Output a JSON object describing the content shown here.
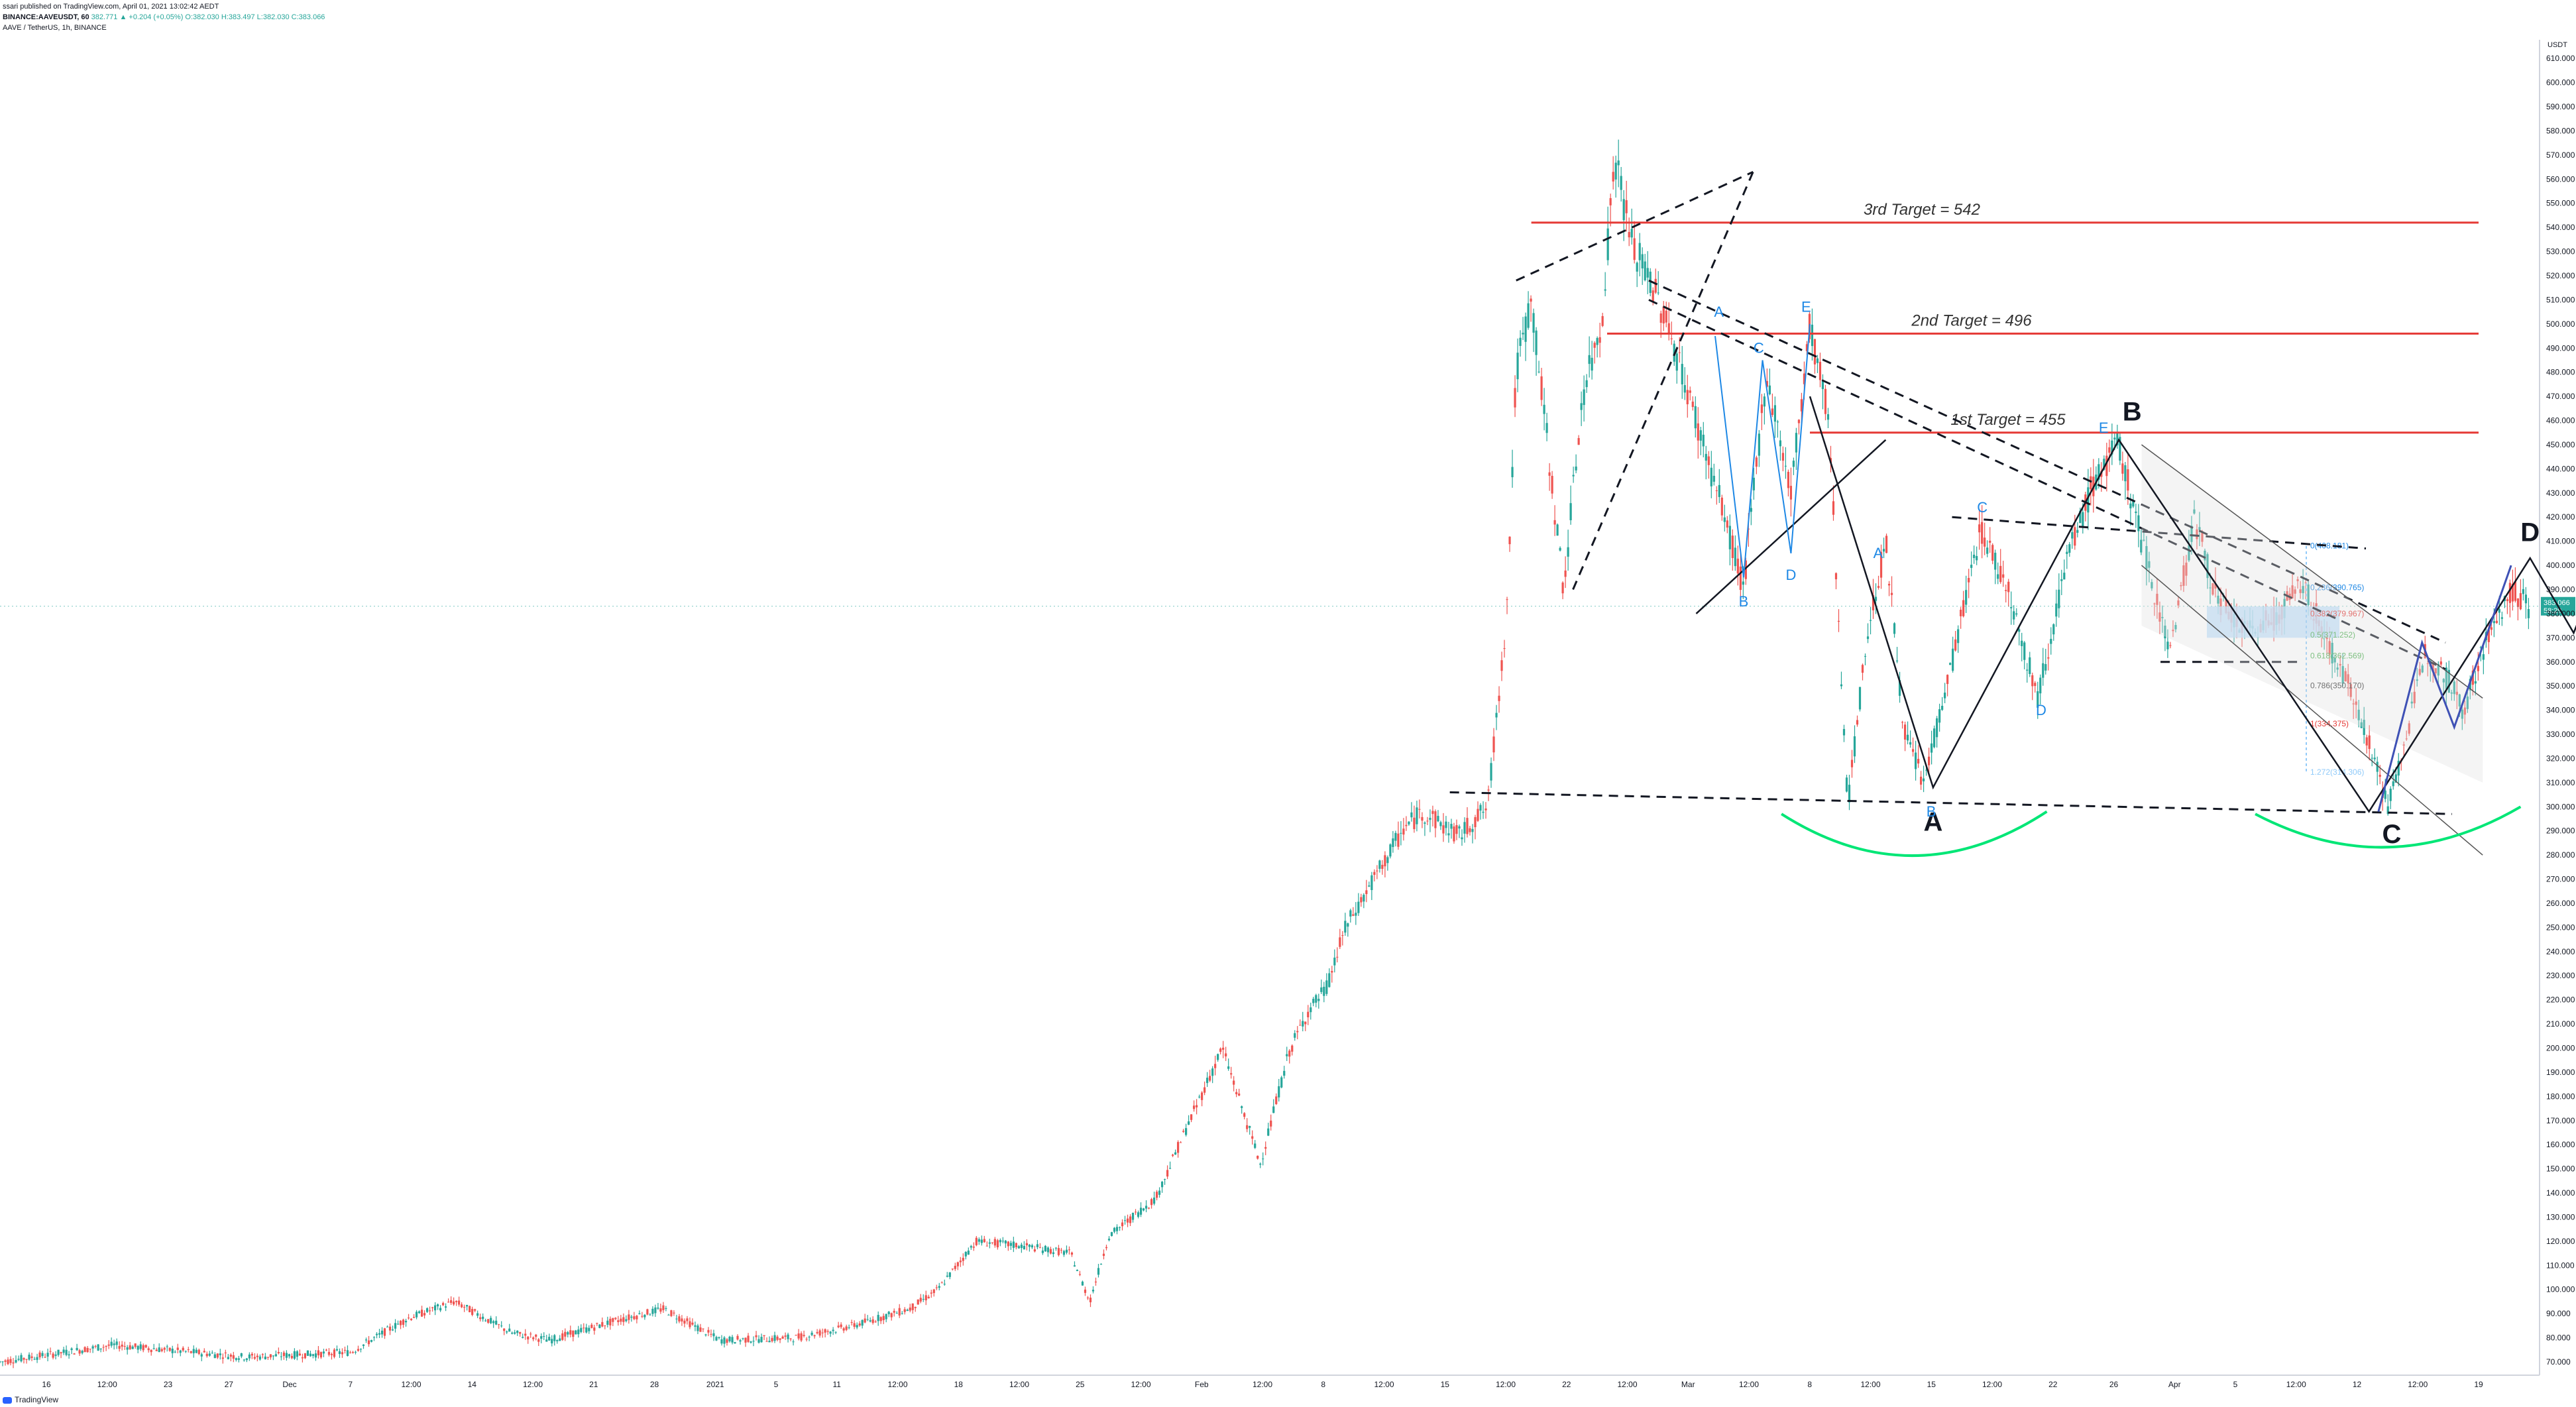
{
  "header": {
    "published": "ssari published on TradingView.com, April 01, 2021 13:02:42 AEDT",
    "symbol_line": "BINANCE:AAVEUSDT, 60",
    "ohlc": "382.771 ▲ +0.204 (+0.05%) O:382.030 H:383.497 L:382.030 C:383.066",
    "title": "AAVE / TetherUS, 1h, BINANCE"
  },
  "footer": {
    "brand": "TradingView"
  },
  "axis": {
    "unit": "USDT",
    "current_price": "383.066",
    "current_time": "58:29"
  },
  "colors": {
    "up": "#26a69a",
    "down": "#ef5350",
    "target_line": "#e53935",
    "wave_black": "#131722",
    "wave_blue": "#1e88e5",
    "cup_green": "#00e676",
    "purple": "#3f51b5",
    "channel_gray": "#555555",
    "fib_fill": "#bbdefb"
  },
  "chart_data": {
    "type": "candlestick",
    "title": "AAVE / TetherUS, 1h, BINANCE",
    "ylim": [
      70,
      615
    ],
    "yticks": [
      610,
      600,
      590,
      580,
      570,
      560,
      550,
      540,
      530,
      520,
      510,
      500,
      490,
      480,
      470,
      460,
      450,
      440,
      430,
      420,
      410,
      400,
      390,
      380,
      370,
      360,
      350,
      340,
      330,
      320,
      310,
      300,
      290,
      280,
      270,
      260,
      250,
      240,
      230,
      220,
      210,
      200,
      190,
      180,
      170,
      160,
      150,
      140,
      130,
      120,
      110,
      100,
      90,
      80,
      70
    ],
    "ytick_labels": [
      "610.000",
      "600.000",
      "590.000",
      "580.000",
      "570.000",
      "560.000",
      "550.000",
      "540.000",
      "530.000",
      "520.000",
      "510.000",
      "500.000",
      "490.000",
      "480.000",
      "470.000",
      "460.000",
      "450.000",
      "440.000",
      "430.000",
      "420.000",
      "410.000",
      "400.000",
      "390.000",
      "380.000",
      "370.000",
      "360.000",
      "350.000",
      "340.000",
      "330.000",
      "320.000",
      "310.000",
      "300.000",
      "290.000",
      "280.000",
      "270.000",
      "260.000",
      "250.000",
      "240.000",
      "230.000",
      "220.000",
      "210.000",
      "200.000",
      "190.000",
      "180.000",
      "170.000",
      "160.000",
      "150.000",
      "140.000",
      "130.000",
      "120.000",
      "110.000",
      "100.000",
      "90.000",
      "80.000",
      "70.000"
    ],
    "xticks": [
      "16",
      "12:00",
      "23",
      "27",
      "Dec",
      "7",
      "12:00",
      "14",
      "12:00",
      "21",
      "28",
      "2021",
      "5",
      "11",
      "12:00",
      "18",
      "12:00",
      "25",
      "12:00",
      "Feb",
      "12:00",
      "8",
      "12:00",
      "15",
      "12:00",
      "22",
      "12:00",
      "Mar",
      "12:00",
      "8",
      "12:00",
      "15",
      "12:00",
      "22",
      "26",
      "Apr",
      "5",
      "12:00",
      "12",
      "12:00",
      "19"
    ],
    "price_path": [
      [
        0,
        70
      ],
      [
        60,
        77
      ],
      [
        130,
        72
      ],
      [
        185,
        74
      ],
      [
        215,
        88
      ],
      [
        240,
        95
      ],
      [
        270,
        82
      ],
      [
        290,
        79
      ],
      [
        320,
        86
      ],
      [
        350,
        92
      ],
      [
        380,
        79
      ],
      [
        420,
        80
      ],
      [
        450,
        85
      ],
      [
        480,
        92
      ],
      [
        495,
        100
      ],
      [
        515,
        120
      ],
      [
        540,
        118
      ],
      [
        565,
        115
      ],
      [
        575,
        95
      ],
      [
        585,
        122
      ],
      [
        610,
        138
      ],
      [
        625,
        165
      ],
      [
        645,
        200
      ],
      [
        665,
        152
      ],
      [
        680,
        198
      ],
      [
        690,
        215
      ],
      [
        700,
        225
      ],
      [
        710,
        250
      ],
      [
        725,
        270
      ],
      [
        740,
        290
      ],
      [
        750,
        298
      ],
      [
        770,
        288
      ],
      [
        785,
        300
      ],
      [
        795,
        380
      ],
      [
        800,
        480
      ],
      [
        808,
        510
      ],
      [
        818,
        440
      ],
      [
        825,
        390
      ],
      [
        835,
        470
      ],
      [
        845,
        500
      ],
      [
        852,
        570
      ],
      [
        862,
        530
      ],
      [
        870,
        520
      ],
      [
        880,
        500
      ],
      [
        895,
        460
      ],
      [
        910,
        420
      ],
      [
        920,
        390
      ],
      [
        932,
        480
      ],
      [
        945,
        430
      ],
      [
        955,
        500
      ],
      [
        965,
        460
      ],
      [
        975,
        300
      ],
      [
        985,
        370
      ],
      [
        995,
        410
      ],
      [
        1005,
        330
      ],
      [
        1015,
        310
      ],
      [
        1030,
        360
      ],
      [
        1045,
        415
      ],
      [
        1060,
        390
      ],
      [
        1075,
        345
      ],
      [
        1090,
        400
      ],
      [
        1105,
        435
      ],
      [
        1118,
        450
      ],
      [
        1130,
        410
      ],
      [
        1145,
        365
      ],
      [
        1158,
        420
      ],
      [
        1170,
        385
      ],
      [
        1185,
        372
      ],
      [
        1200,
        378
      ],
      [
        1215,
        392
      ],
      [
        1230,
        365
      ],
      [
        1245,
        340
      ],
      [
        1260,
        300
      ],
      [
        1270,
        330
      ],
      [
        1280,
        365
      ],
      [
        1290,
        355
      ],
      [
        1300,
        340
      ],
      [
        1310,
        365
      ],
      [
        1325,
        390
      ],
      [
        1335,
        383
      ]
    ],
    "annotations": {
      "targets": [
        {
          "label": "3rd Target  =  542",
          "value": 542
        },
        {
          "label": "2nd Target  = 496",
          "value": 496
        },
        {
          "label": "1st Target  = 455",
          "value": 455
        }
      ],
      "wave_labels_large": [
        "A",
        "B",
        "C",
        "D",
        "E"
      ],
      "wave_labels_small": [
        "A",
        "B",
        "C",
        "D",
        "E",
        "A",
        "B",
        "C",
        "D",
        "E"
      ],
      "fib_levels": [
        {
          "label": "0(408.181)",
          "value": 408.181
        },
        {
          "label": "0.236(390.765)",
          "value": 390.765
        },
        {
          "label": "0.382(379.967)",
          "value": 379.967
        },
        {
          "label": "0.5(371.252)",
          "value": 371.252
        },
        {
          "label": "0.618(362.569)",
          "value": 362.569
        },
        {
          "label": "0.786(350.170)",
          "value": 350.17
        },
        {
          "label": "1(334.375)",
          "value": 334.375
        },
        {
          "label": "1.272(314.306)",
          "value": 314.306
        }
      ],
      "fib_range": [
        370,
        383
      ]
    }
  }
}
